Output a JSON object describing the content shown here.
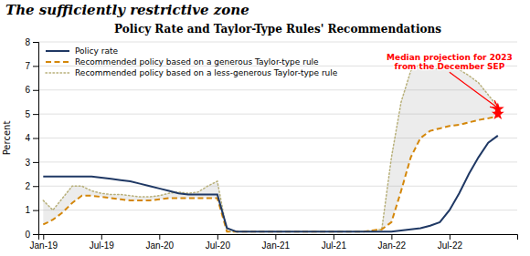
{
  "chart_data": {
    "type": "line",
    "subtitle": "The sufficiently restrictive zone",
    "title": "Policy Rate and Taylor-Type Rules' Recommendations",
    "ylabel": "Percent",
    "x": [
      0,
      1,
      2,
      3,
      4,
      5,
      6,
      7,
      8,
      9,
      10,
      11,
      12,
      13,
      14,
      15,
      16,
      17,
      18,
      19,
      20,
      21,
      22,
      23,
      24,
      25,
      26,
      27,
      28,
      29,
      30,
      31,
      32,
      33,
      34,
      35,
      36,
      37,
      38,
      39,
      40,
      41,
      42,
      43,
      44,
      45,
      46,
      47
    ],
    "xlim": [
      -0.5,
      49
    ],
    "xticks": [
      {
        "value": 0,
        "label": "Jan-19"
      },
      {
        "value": 6,
        "label": "Jul-19"
      },
      {
        "value": 12,
        "label": "Jan-20"
      },
      {
        "value": 18,
        "label": "Jul-20"
      },
      {
        "value": 24,
        "label": "Jan-21"
      },
      {
        "value": 30,
        "label": "Jul-21"
      },
      {
        "value": 36,
        "label": "Jan-22"
      },
      {
        "value": 42,
        "label": "Jul-22"
      }
    ],
    "ylim": [
      0,
      8
    ],
    "yticks": [
      0,
      1,
      2,
      3,
      4,
      5,
      6,
      7,
      8
    ],
    "grid": true,
    "legend": "upper left",
    "series": [
      {
        "name": "Policy rate",
        "color": "#1f3864",
        "line_style": "solid",
        "values": [
          2.4,
          2.4,
          2.4,
          2.4,
          2.4,
          2.4,
          2.35,
          2.3,
          2.25,
          2.2,
          2.1,
          2.0,
          1.9,
          1.8,
          1.7,
          1.65,
          1.65,
          1.65,
          1.65,
          0.25,
          0.1,
          0.1,
          0.1,
          0.1,
          0.1,
          0.1,
          0.1,
          0.1,
          0.1,
          0.1,
          0.1,
          0.1,
          0.1,
          0.1,
          0.1,
          0.1,
          0.1,
          0.15,
          0.2,
          0.25,
          0.35,
          0.5,
          1.0,
          1.7,
          2.5,
          3.2,
          3.8,
          4.1
        ]
      },
      {
        "name": "Recommended policy based on a generous Taylor-type rule",
        "color": "#d4870a",
        "line_style": "dashed",
        "values": [
          0.4,
          0.6,
          0.9,
          1.3,
          1.6,
          1.6,
          1.55,
          1.5,
          1.45,
          1.4,
          1.4,
          1.4,
          1.45,
          1.5,
          1.5,
          1.5,
          1.5,
          1.5,
          1.5,
          0.1,
          0.1,
          0.1,
          0.1,
          0.1,
          0.1,
          0.1,
          0.1,
          0.1,
          0.1,
          0.1,
          0.1,
          0.1,
          0.1,
          0.1,
          0.15,
          0.2,
          0.5,
          1.8,
          3.2,
          4.0,
          4.3,
          4.4,
          4.5,
          4.55,
          4.65,
          4.75,
          4.82,
          4.9
        ]
      },
      {
        "name": "Recommended policy based on a less-generous Taylor-type rule",
        "color": "#b8b07a",
        "line_style": "dotted",
        "values": [
          1.4,
          1.0,
          1.5,
          2.0,
          2.0,
          1.8,
          1.7,
          1.65,
          1.65,
          1.6,
          1.55,
          1.55,
          1.6,
          1.7,
          1.75,
          1.7,
          1.75,
          2.0,
          2.2,
          0.1,
          0.1,
          0.1,
          0.1,
          0.1,
          0.1,
          0.1,
          0.1,
          0.1,
          0.1,
          0.1,
          0.1,
          0.1,
          0.1,
          0.1,
          0.15,
          0.2,
          3.2,
          5.5,
          6.8,
          7.1,
          6.95,
          6.85,
          7.0,
          6.85,
          6.6,
          6.3,
          5.8,
          5.3
        ]
      }
    ],
    "projection": {
      "x": 47,
      "values": [
        5.2,
        5.0
      ],
      "color": "red",
      "marker": "star"
    },
    "annotation": {
      "text": "Median projection for 2023\nfrom the December SEP",
      "x": 42,
      "y": 7.55,
      "arrow_x": 47,
      "arrow_y": 5.1,
      "color": "red"
    }
  }
}
